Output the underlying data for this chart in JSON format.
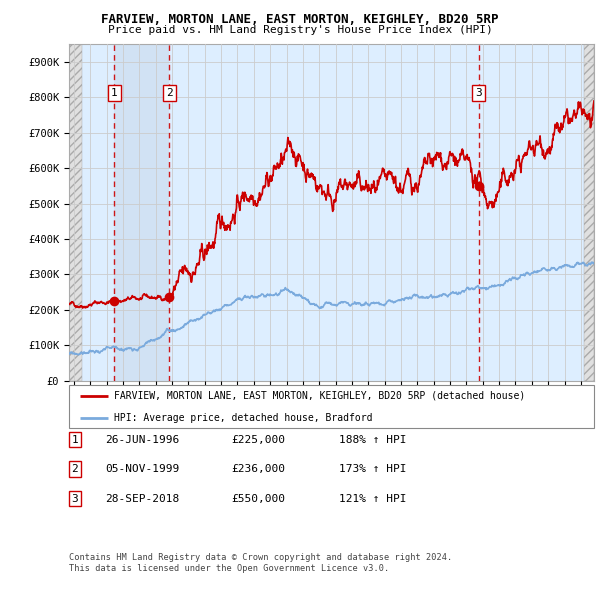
{
  "title1": "FARVIEW, MORTON LANE, EAST MORTON, KEIGHLEY, BD20 5RP",
  "title2": "Price paid vs. HM Land Registry's House Price Index (HPI)",
  "ylabel_values": [
    "£0",
    "£100K",
    "£200K",
    "£300K",
    "£400K",
    "£500K",
    "£600K",
    "£700K",
    "£800K",
    "£900K"
  ],
  "ytick_values": [
    0,
    100000,
    200000,
    300000,
    400000,
    500000,
    600000,
    700000,
    800000,
    900000
  ],
  "xmin": 1993.7,
  "xmax": 2025.8,
  "ymin": 0,
  "ymax": 950000,
  "hatch_left_end": 1994.5,
  "hatch_right_start": 2025.2,
  "shade_between_sales12_start": 1996.48,
  "shade_between_sales12_end": 1999.84,
  "sale_points": [
    {
      "year": 1996.48,
      "price": 225000,
      "label": "1"
    },
    {
      "year": 1999.84,
      "price": 236000,
      "label": "2"
    },
    {
      "year": 2018.74,
      "price": 550000,
      "label": "3"
    }
  ],
  "legend_line1": "FARVIEW, MORTON LANE, EAST MORTON, KEIGHLEY, BD20 5RP (detached house)",
  "legend_line2": "HPI: Average price, detached house, Bradford",
  "table_rows": [
    {
      "num": "1",
      "date": "26-JUN-1996",
      "price": "£225,000",
      "hpi": "188% ↑ HPI"
    },
    {
      "num": "2",
      "date": "05-NOV-1999",
      "price": "£236,000",
      "hpi": "173% ↑ HPI"
    },
    {
      "num": "3",
      "date": "28-SEP-2018",
      "price": "£550,000",
      "hpi": "121% ↑ HPI"
    }
  ],
  "footnote1": "Contains HM Land Registry data © Crown copyright and database right 2024.",
  "footnote2": "This data is licensed under the Open Government Licence v3.0.",
  "red_line_color": "#cc0000",
  "blue_line_color": "#7aaadd",
  "grid_color": "#cccccc",
  "bg_color": "#ddeeff",
  "hatch_bg": "#e0e0e0",
  "shade_color": "#ccddf0"
}
